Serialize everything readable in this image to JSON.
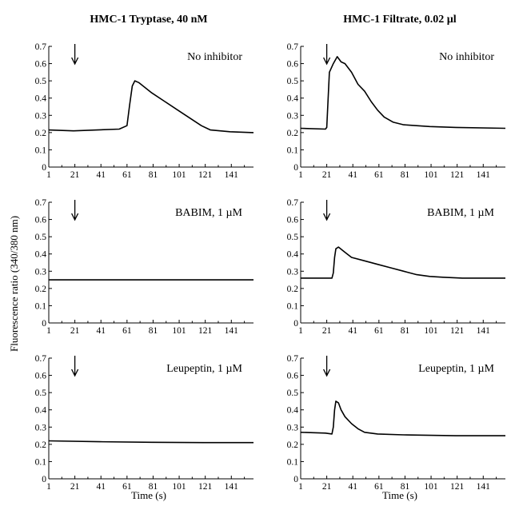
{
  "figure": {
    "column_titles": [
      "HMC-1 Tryptase, 40 nM",
      "HMC-1 Filtrate, 0.02 µl"
    ],
    "ylabel": "Fluorescence ratio (340/380 nm)",
    "xlabel": "Time (s)"
  },
  "chart_data": [
    {
      "type": "line",
      "column": 0,
      "row": 0,
      "label": "No inhibitor",
      "xlim": [
        1,
        158
      ],
      "ylim": [
        0,
        0.7
      ],
      "xticks": [
        "1",
        "21",
        "41",
        "61",
        "81",
        "101",
        "121",
        "141"
      ],
      "yticks": [
        "0",
        "0.1",
        "0.2",
        "0.3",
        "0.4",
        "0.5",
        "0.6",
        "0.7"
      ],
      "arrow_x": 21,
      "series": [
        {
          "x": [
            1,
            20,
            55,
            61,
            63,
            65,
            67,
            70,
            80,
            90,
            100,
            110,
            118,
            125,
            140,
            158
          ],
          "y": [
            0.215,
            0.21,
            0.22,
            0.24,
            0.36,
            0.47,
            0.5,
            0.49,
            0.43,
            0.38,
            0.33,
            0.28,
            0.24,
            0.215,
            0.205,
            0.2
          ]
        }
      ]
    },
    {
      "type": "line",
      "column": 1,
      "row": 0,
      "label": "No inhibitor",
      "xlim": [
        1,
        158
      ],
      "ylim": [
        0,
        0.7
      ],
      "xticks": [
        "1",
        "21",
        "41",
        "61",
        "81",
        "101",
        "121",
        "141"
      ],
      "yticks": [
        "0",
        "0.1",
        "0.2",
        "0.3",
        "0.4",
        "0.5",
        "0.6",
        "0.7"
      ],
      "arrow_x": 21,
      "series": [
        {
          "x": [
            1,
            20,
            21,
            23,
            26,
            29,
            32,
            35,
            40,
            45,
            50,
            55,
            60,
            65,
            72,
            80,
            100,
            120,
            158
          ],
          "y": [
            0.225,
            0.22,
            0.23,
            0.55,
            0.6,
            0.64,
            0.61,
            0.6,
            0.55,
            0.48,
            0.44,
            0.38,
            0.33,
            0.29,
            0.26,
            0.245,
            0.235,
            0.23,
            0.225
          ]
        }
      ]
    },
    {
      "type": "line",
      "column": 0,
      "row": 1,
      "label": "BABIM, 1 µM",
      "xlim": [
        1,
        158
      ],
      "ylim": [
        0,
        0.7
      ],
      "xticks": [
        "1",
        "21",
        "41",
        "61",
        "81",
        "101",
        "121",
        "141"
      ],
      "yticks": [
        "0",
        "0.1",
        "0.2",
        "0.3",
        "0.4",
        "0.5",
        "0.6",
        "0.7"
      ],
      "arrow_x": 21,
      "series": [
        {
          "x": [
            1,
            40,
            80,
            120,
            158
          ],
          "y": [
            0.25,
            0.25,
            0.25,
            0.25,
            0.25
          ]
        }
      ]
    },
    {
      "type": "line",
      "column": 1,
      "row": 1,
      "label": "BABIM, 1 µM",
      "xlim": [
        1,
        158
      ],
      "ylim": [
        0,
        0.7
      ],
      "xticks": [
        "1",
        "21",
        "41",
        "61",
        "81",
        "101",
        "121",
        "141"
      ],
      "yticks": [
        "0",
        "0.1",
        "0.2",
        "0.3",
        "0.4",
        "0.5",
        "0.6",
        "0.7"
      ],
      "arrow_x": 21,
      "series": [
        {
          "x": [
            1,
            25,
            26,
            27,
            28,
            30,
            35,
            40,
            50,
            60,
            70,
            80,
            90,
            100,
            110,
            125,
            158
          ],
          "y": [
            0.26,
            0.26,
            0.29,
            0.38,
            0.43,
            0.44,
            0.41,
            0.38,
            0.36,
            0.34,
            0.32,
            0.3,
            0.28,
            0.27,
            0.265,
            0.26,
            0.26
          ]
        }
      ]
    },
    {
      "type": "line",
      "column": 0,
      "row": 2,
      "label": "Leupeptin, 1 µM",
      "xlim": [
        1,
        158
      ],
      "ylim": [
        0,
        0.7
      ],
      "xticks": [
        "1",
        "21",
        "41",
        "61",
        "81",
        "101",
        "121",
        "141"
      ],
      "yticks": [
        "0",
        "0.1",
        "0.2",
        "0.3",
        "0.4",
        "0.5",
        "0.6",
        "0.7"
      ],
      "arrow_x": 21,
      "series": [
        {
          "x": [
            1,
            40,
            80,
            120,
            158
          ],
          "y": [
            0.22,
            0.215,
            0.212,
            0.21,
            0.21
          ]
        }
      ]
    },
    {
      "type": "line",
      "column": 1,
      "row": 2,
      "label": "Leupeptin, 1 µM",
      "xlim": [
        1,
        158
      ],
      "ylim": [
        0,
        0.7
      ],
      "xticks": [
        "1",
        "21",
        "41",
        "61",
        "81",
        "101",
        "121",
        "141"
      ],
      "yticks": [
        "0",
        "0.1",
        "0.2",
        "0.3",
        "0.4",
        "0.5",
        "0.6",
        "0.7"
      ],
      "arrow_x": 21,
      "series": [
        {
          "x": [
            1,
            20,
            25,
            26,
            27,
            28,
            30,
            32,
            35,
            40,
            45,
            50,
            60,
            80,
            120,
            158
          ],
          "y": [
            0.27,
            0.265,
            0.26,
            0.3,
            0.4,
            0.45,
            0.44,
            0.4,
            0.36,
            0.32,
            0.29,
            0.27,
            0.26,
            0.255,
            0.25,
            0.25
          ]
        }
      ]
    }
  ]
}
